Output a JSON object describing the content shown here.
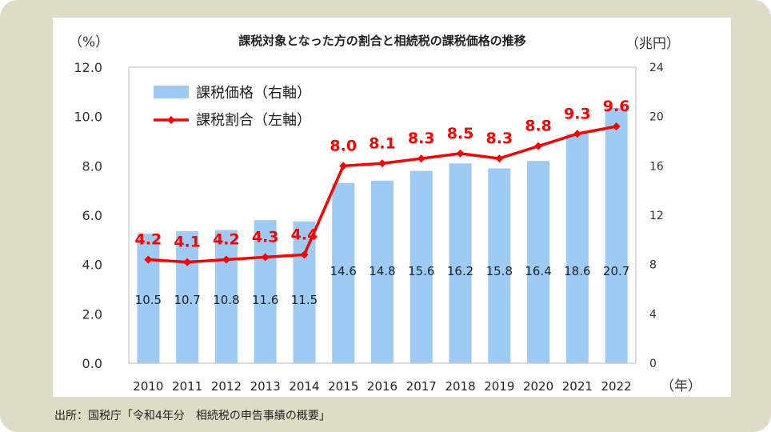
{
  "chart_data": {
    "type": "bar+line",
    "title": "課税対象となった方の割合と相続税の課税価格の推移",
    "left_axis_unit": "（%）",
    "right_axis_unit": "（兆円）",
    "x_unit": "（年）",
    "categories": [
      "2010",
      "2011",
      "2012",
      "2013",
      "2014",
      "2015",
      "2016",
      "2017",
      "2018",
      "2019",
      "2020",
      "2021",
      "2022"
    ],
    "series": [
      {
        "name": "課税価格（右軸）",
        "type": "bar",
        "axis": "right",
        "color": "#9dcbf3",
        "values": [
          10.5,
          10.7,
          10.8,
          11.6,
          11.5,
          14.6,
          14.8,
          15.6,
          16.2,
          15.8,
          16.4,
          18.6,
          20.7
        ]
      },
      {
        "name": "課税割合（左軸）",
        "type": "line",
        "axis": "left",
        "color": "#ff0000",
        "values": [
          4.2,
          4.1,
          4.2,
          4.3,
          4.4,
          8.0,
          8.1,
          8.3,
          8.5,
          8.3,
          8.8,
          9.3,
          9.6
        ]
      }
    ],
    "left_ylim": [
      0,
      12
    ],
    "left_ticks": [
      "0.0",
      "2.0",
      "4.0",
      "6.0",
      "8.0",
      "10.0",
      "12.0"
    ],
    "right_ylim": [
      0,
      24
    ],
    "right_ticks": [
      "0",
      "4",
      "8",
      "12",
      "16",
      "20",
      "24"
    ],
    "grid": false,
    "legend_position": "top-left"
  },
  "source": "出所：国税庁「令和4年分　相続税の申告事績の概要」"
}
